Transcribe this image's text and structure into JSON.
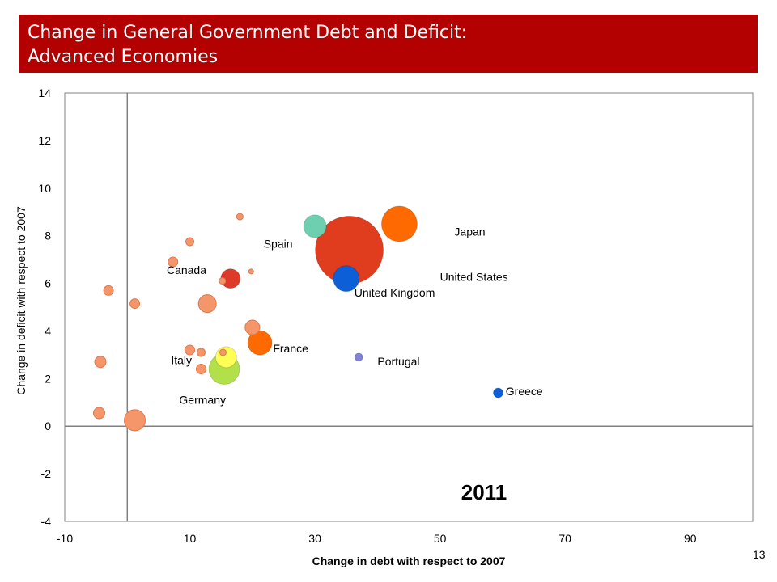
{
  "slide": {
    "title": "Change in General Government Debt and Deficit:\nAdvanced Economies",
    "page_number": "13"
  },
  "colors": {
    "title_bg": "#b30000",
    "title_text": "#ffffff",
    "unlabeled_bubble": "#f4956a",
    "unlabeled_bubble_stroke": "#e07850"
  },
  "chart_data": {
    "type": "scatter",
    "xlabel": "Change in debt with respect to 2007",
    "ylabel": "Change in deficit with respect to 2007",
    "xlim": [
      -10,
      100
    ],
    "ylim": [
      -4,
      14
    ],
    "xticks": [
      -10,
      10,
      30,
      50,
      70,
      90
    ],
    "yticks": [
      -4,
      -2,
      0,
      2,
      4,
      6,
      8,
      10,
      12,
      14
    ],
    "year_annotation": "2011",
    "grid": false,
    "points": [
      {
        "label": "United States",
        "x": 35.5,
        "y": 7.4,
        "size": 42,
        "color": "#e03c1e"
      },
      {
        "label": "Japan",
        "x": 43.5,
        "y": 8.5,
        "size": 22,
        "color": "#ff6a00"
      },
      {
        "label": "Spain",
        "x": 30.0,
        "y": 8.4,
        "size": 14,
        "color": "#6dcfb0"
      },
      {
        "label": "United Kingdom",
        "x": 35.0,
        "y": 6.2,
        "size": 16,
        "color": "#0c5fd6"
      },
      {
        "label": "Canada",
        "x": 16.5,
        "y": 6.2,
        "size": 12,
        "color": "#dd3a2a"
      },
      {
        "label": "France",
        "x": 21.2,
        "y": 3.5,
        "size": 15,
        "color": "#ff6a00"
      },
      {
        "label": "Germany",
        "x": 15.5,
        "y": 2.4,
        "size": 19,
        "color": "#b2e04a"
      },
      {
        "label": "Italy",
        "x": 15.8,
        "y": 2.9,
        "size": 13,
        "color": "#ffff55"
      },
      {
        "label": "Portugal",
        "x": 37.0,
        "y": 2.9,
        "size": 5,
        "color": "#8080d8"
      },
      {
        "label": "Greece",
        "x": 59.3,
        "y": 1.4,
        "size": 6,
        "color": "#0c5fd6"
      },
      {
        "label": "",
        "x": 1.2,
        "y": 0.25,
        "size": 13,
        "color": "#f4956a"
      },
      {
        "label": "",
        "x": -4.5,
        "y": 0.55,
        "size": 7,
        "color": "#f4956a"
      },
      {
        "label": "",
        "x": -4.3,
        "y": 2.7,
        "size": 7,
        "color": "#f4956a"
      },
      {
        "label": "",
        "x": -3.0,
        "y": 5.7,
        "size": 6,
        "color": "#f4956a"
      },
      {
        "label": "",
        "x": 1.2,
        "y": 5.15,
        "size": 6,
        "color": "#f4956a"
      },
      {
        "label": "",
        "x": 12.8,
        "y": 5.15,
        "size": 11,
        "color": "#f4956a"
      },
      {
        "label": "",
        "x": 7.3,
        "y": 6.9,
        "size": 6,
        "color": "#f4956a"
      },
      {
        "label": "",
        "x": 10.0,
        "y": 7.75,
        "size": 5,
        "color": "#f4956a"
      },
      {
        "label": "",
        "x": 18.0,
        "y": 8.8,
        "size": 4,
        "color": "#f4956a"
      },
      {
        "label": "",
        "x": 19.8,
        "y": 6.5,
        "size": 3,
        "color": "#f4956a"
      },
      {
        "label": "",
        "x": 20.0,
        "y": 4.15,
        "size": 9,
        "color": "#f4956a"
      },
      {
        "label": "",
        "x": 10.0,
        "y": 3.2,
        "size": 6,
        "color": "#f4956a"
      },
      {
        "label": "",
        "x": 11.8,
        "y": 3.1,
        "size": 5,
        "color": "#f4956a"
      },
      {
        "label": "",
        "x": 11.8,
        "y": 2.4,
        "size": 6,
        "color": "#f4956a"
      },
      {
        "label": "",
        "x": 15.3,
        "y": 3.1,
        "size": 4,
        "color": "#f4956a"
      },
      {
        "label": "",
        "x": 15.2,
        "y": 6.1,
        "size": 4,
        "color": "#f4956a"
      }
    ],
    "labels": [
      {
        "text": "United States",
        "x": 50.0,
        "y": 6.1
      },
      {
        "text": "Japan",
        "x": 52.3,
        "y": 8.0
      },
      {
        "text": "Spain",
        "x": 21.8,
        "y": 7.5
      },
      {
        "text": "United Kingdom",
        "x": 36.3,
        "y": 5.45
      },
      {
        "text": "Canada",
        "x": 6.3,
        "y": 6.4
      },
      {
        "text": "France",
        "x": 23.3,
        "y": 3.1
      },
      {
        "text": "Germany",
        "x": 8.3,
        "y": 0.95
      },
      {
        "text": "Italy",
        "x": 7.0,
        "y": 2.6
      },
      {
        "text": "Portugal",
        "x": 40.0,
        "y": 2.55
      },
      {
        "text": "Greece",
        "x": 60.5,
        "y": 1.3
      }
    ]
  }
}
